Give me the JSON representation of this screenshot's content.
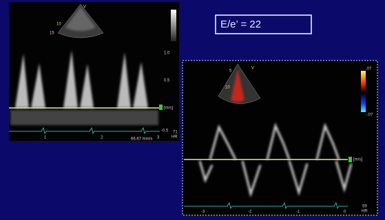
{
  "text_box": "E/e’ = 22",
  "left_image": {
    "marker": "V",
    "depth_labels": [
      "10",
      "15"
    ],
    "scale_labels": [
      "1.0",
      "0.5",
      "[m/s]",
      "-0.5"
    ],
    "heart_rate": "71",
    "hr_unit": "HR",
    "time_labels": [
      "1",
      "2",
      "3"
    ],
    "sweep": "66.67 mm/s"
  },
  "right_image": {
    "marker": "V",
    "depth_labels": [
      "5",
      "10"
    ],
    "color_scale": [
      ".07",
      "-.07"
    ],
    "unit": "[m/s]",
    "time_labels": [
      "-3",
      "-2",
      "-1",
      "0"
    ],
    "heart_rate": "59",
    "hr_unit": "HR"
  }
}
